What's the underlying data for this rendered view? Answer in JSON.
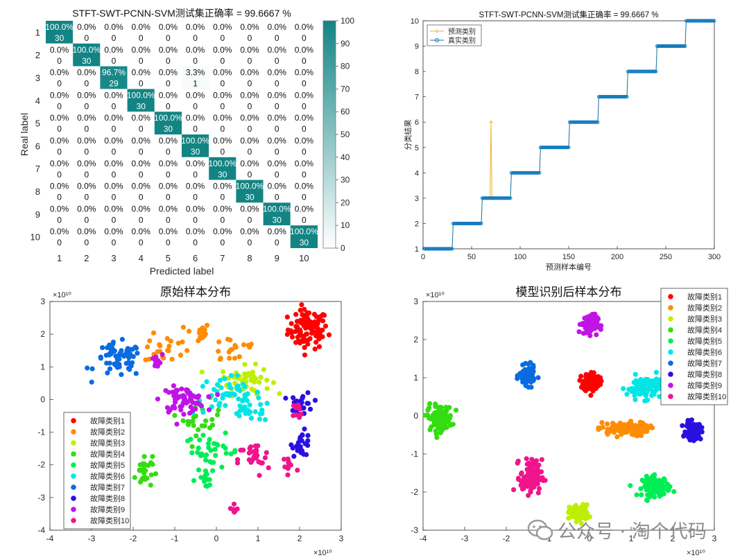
{
  "figure": {
    "watermark": "公众号 · 淘个代码"
  },
  "chart_data": [
    {
      "type": "heatmap",
      "title": "STFT-SWT-PCNN-SVM测试集正确率 = 99.6667 %",
      "xlabel": "Predicted label",
      "ylabel": "Real label",
      "x_categories": [
        "1",
        "2",
        "3",
        "4",
        "5",
        "6",
        "7",
        "8",
        "9",
        "10"
      ],
      "y_categories": [
        "1",
        "2",
        "3",
        "4",
        "5",
        "6",
        "7",
        "8",
        "9",
        "10"
      ],
      "percent_labels": [
        [
          "100.0%",
          "0.0%",
          "0.0%",
          "0.0%",
          "0.0%",
          "0.0%",
          "0.0%",
          "0.0%",
          "0.0%",
          "0.0%"
        ],
        [
          "0.0%",
          "100.0%",
          "0.0%",
          "0.0%",
          "0.0%",
          "0.0%",
          "0.0%",
          "0.0%",
          "0.0%",
          "0.0%"
        ],
        [
          "0.0%",
          "0.0%",
          "96.7%",
          "0.0%",
          "0.0%",
          "3.3%",
          "0.0%",
          "0.0%",
          "0.0%",
          "0.0%"
        ],
        [
          "0.0%",
          "0.0%",
          "0.0%",
          "100.0%",
          "0.0%",
          "0.0%",
          "0.0%",
          "0.0%",
          "0.0%",
          "0.0%"
        ],
        [
          "0.0%",
          "0.0%",
          "0.0%",
          "0.0%",
          "100.0%",
          "0.0%",
          "0.0%",
          "0.0%",
          "0.0%",
          "0.0%"
        ],
        [
          "0.0%",
          "0.0%",
          "0.0%",
          "0.0%",
          "0.0%",
          "100.0%",
          "0.0%",
          "0.0%",
          "0.0%",
          "0.0%"
        ],
        [
          "0.0%",
          "0.0%",
          "0.0%",
          "0.0%",
          "0.0%",
          "0.0%",
          "100.0%",
          "0.0%",
          "0.0%",
          "0.0%"
        ],
        [
          "0.0%",
          "0.0%",
          "0.0%",
          "0.0%",
          "0.0%",
          "0.0%",
          "0.0%",
          "100.0%",
          "0.0%",
          "0.0%"
        ],
        [
          "0.0%",
          "0.0%",
          "0.0%",
          "0.0%",
          "0.0%",
          "0.0%",
          "0.0%",
          "0.0%",
          "100.0%",
          "0.0%"
        ],
        [
          "0.0%",
          "0.0%",
          "0.0%",
          "0.0%",
          "0.0%",
          "0.0%",
          "0.0%",
          "0.0%",
          "0.0%",
          "100.0%"
        ]
      ],
      "counts": [
        [
          30,
          0,
          0,
          0,
          0,
          0,
          0,
          0,
          0,
          0
        ],
        [
          0,
          30,
          0,
          0,
          0,
          0,
          0,
          0,
          0,
          0
        ],
        [
          0,
          0,
          29,
          0,
          0,
          1,
          0,
          0,
          0,
          0
        ],
        [
          0,
          0,
          0,
          30,
          0,
          0,
          0,
          0,
          0,
          0
        ],
        [
          0,
          0,
          0,
          0,
          30,
          0,
          0,
          0,
          0,
          0
        ],
        [
          0,
          0,
          0,
          0,
          0,
          30,
          0,
          0,
          0,
          0
        ],
        [
          0,
          0,
          0,
          0,
          0,
          0,
          30,
          0,
          0,
          0
        ],
        [
          0,
          0,
          0,
          0,
          0,
          0,
          0,
          30,
          0,
          0
        ],
        [
          0,
          0,
          0,
          0,
          0,
          0,
          0,
          0,
          30,
          0
        ],
        [
          0,
          0,
          0,
          0,
          0,
          0,
          0,
          0,
          0,
          30
        ]
      ],
      "colorbar": {
        "min": 0,
        "max": 100,
        "ticks": [
          0,
          10,
          20,
          30,
          40,
          50,
          60,
          70,
          80,
          90,
          100
        ],
        "color_low": "#ffffff",
        "color_high": "#138484"
      }
    },
    {
      "type": "line",
      "title": "STFT-SWT-PCNN-SVM测试集正确率 = 99.6667 %",
      "xlabel": "预测样本编号",
      "ylabel": "分类结果",
      "xlim": [
        0,
        300
      ],
      "ylim": [
        1,
        10
      ],
      "xticks": [
        0,
        50,
        100,
        150,
        200,
        250,
        300
      ],
      "yticks": [
        1,
        2,
        3,
        4,
        5,
        6,
        7,
        8,
        9,
        10
      ],
      "grid": false,
      "legend_position": "top-left",
      "samples_per_class": 30,
      "series": [
        {
          "name": "预测类别",
          "color": "#EDB120",
          "marker": "plus",
          "misclassified": [
            {
              "x": 70,
              "y": 6
            }
          ]
        },
        {
          "name": "真实类别",
          "color": "#0072BD",
          "marker": "circle"
        }
      ]
    },
    {
      "type": "scatter",
      "title": "原始样本分布",
      "xlim": [
        -4,
        3
      ],
      "ylim": [
        -4,
        3
      ],
      "xticks": [
        -4,
        -3,
        -2,
        -1,
        0,
        1,
        2,
        3
      ],
      "yticks": [
        -4,
        -3,
        -2,
        -1,
        0,
        1,
        2,
        3
      ],
      "axis_exponent": "×10¹⁰",
      "legend_position": "bottom-left",
      "series": [
        {
          "name": "故障类别1",
          "color": "#FF0000",
          "clusters": [
            {
              "cx": 2.2,
              "cy": 2.15,
              "sx": 0.32,
              "sy": 0.4,
              "n": 95
            }
          ]
        },
        {
          "name": "故障类别2",
          "color": "#FF8C00",
          "clusters": [
            {
              "cx": -1.2,
              "cy": 1.55,
              "sx": 0.35,
              "sy": 0.3,
              "n": 22
            },
            {
              "cx": -0.45,
              "cy": 2.05,
              "sx": 0.2,
              "sy": 0.2,
              "n": 18
            },
            {
              "cx": 0.4,
              "cy": 1.55,
              "sx": 0.45,
              "sy": 0.35,
              "n": 18
            }
          ]
        },
        {
          "name": "故障类别3",
          "color": "#BFEF00",
          "clusters": [
            {
              "cx": 0.7,
              "cy": 0.6,
              "sx": 0.4,
              "sy": 0.28,
              "n": 55
            }
          ]
        },
        {
          "name": "故障类别4",
          "color": "#33DD11",
          "clusters": [
            {
              "cx": -1.75,
              "cy": -2.2,
              "sx": 0.14,
              "sy": 0.35,
              "n": 30
            },
            {
              "cx": -0.35,
              "cy": -0.55,
              "sx": 0.3,
              "sy": 0.35,
              "n": 25
            }
          ]
        },
        {
          "name": "故障类别5",
          "color": "#00EE55",
          "clusters": [
            {
              "cx": -0.1,
              "cy": -1.6,
              "sx": 0.45,
              "sy": 0.35,
              "n": 35
            },
            {
              "cx": -0.3,
              "cy": -2.45,
              "sx": 0.2,
              "sy": 0.15,
              "n": 12
            }
          ]
        },
        {
          "name": "故障类别6",
          "color": "#00E5E5",
          "clusters": [
            {
              "cx": 0.25,
              "cy": 0.15,
              "sx": 0.55,
              "sy": 0.4,
              "n": 50
            },
            {
              "cx": 0.8,
              "cy": -0.35,
              "sx": 0.35,
              "sy": 0.2,
              "n": 25
            }
          ]
        },
        {
          "name": "故障类别7",
          "color": "#0A6BE0",
          "clusters": [
            {
              "cx": -2.35,
              "cy": 1.2,
              "sx": 0.38,
              "sy": 0.35,
              "n": 60
            }
          ]
        },
        {
          "name": "故障类别8",
          "color": "#2A10E0",
          "clusters": [
            {
              "cx": 2.05,
              "cy": -0.15,
              "sx": 0.18,
              "sy": 0.25,
              "n": 28
            },
            {
              "cx": 2.05,
              "cy": -1.35,
              "sx": 0.15,
              "sy": 0.25,
              "n": 28
            }
          ]
        },
        {
          "name": "故障类别9",
          "color": "#C014E6",
          "clusters": [
            {
              "cx": -0.8,
              "cy": 0.0,
              "sx": 0.35,
              "sy": 0.25,
              "n": 70
            },
            {
              "cx": -1.45,
              "cy": 1.15,
              "sx": 0.1,
              "sy": 0.15,
              "n": 10
            }
          ]
        },
        {
          "name": "故障类别10",
          "color": "#F0148C",
          "clusters": [
            {
              "cx": 0.9,
              "cy": -1.85,
              "sx": 0.25,
              "sy": 0.35,
              "n": 28
            },
            {
              "cx": 1.75,
              "cy": -2.05,
              "sx": 0.15,
              "sy": 0.35,
              "n": 12
            },
            {
              "cx": 0.4,
              "cy": -3.35,
              "sx": 0.08,
              "sy": 0.15,
              "n": 8
            },
            {
              "cx": 2.0,
              "cy": -0.35,
              "sx": 0.12,
              "sy": 0.2,
              "n": 10
            }
          ]
        }
      ]
    },
    {
      "type": "scatter",
      "title": "模型识别后样本分布",
      "xlim": [
        -4,
        3
      ],
      "ylim": [
        -3,
        3
      ],
      "xticks": [
        -4,
        -3,
        -2,
        -1,
        0,
        1,
        2,
        3
      ],
      "yticks": [
        -3,
        -2,
        -1,
        0,
        1,
        2,
        3
      ],
      "axis_exponent": "×10¹⁰",
      "legend_position": "top-right",
      "series": [
        {
          "name": "故障类别1",
          "color": "#FF0000",
          "clusters": [
            {
              "cx": 0.05,
              "cy": 0.9,
              "sx": 0.13,
              "sy": 0.17,
              "n": 100
            }
          ]
        },
        {
          "name": "故障类别2",
          "color": "#FF8C00",
          "clusters": [
            {
              "cx": 0.8,
              "cy": -0.35,
              "sx": 0.4,
              "sy": 0.12,
              "n": 100
            }
          ]
        },
        {
          "name": "故障类别3",
          "color": "#BFEF00",
          "clusters": [
            {
              "cx": -0.25,
              "cy": -2.55,
              "sx": 0.15,
              "sy": 0.14,
              "n": 100
            }
          ]
        },
        {
          "name": "故障类别4",
          "color": "#33DD11",
          "clusters": [
            {
              "cx": -3.6,
              "cy": -0.05,
              "sx": 0.2,
              "sy": 0.22,
              "n": 100
            }
          ]
        },
        {
          "name": "故障类别5",
          "color": "#00EE55",
          "clusters": [
            {
              "cx": 1.6,
              "cy": -1.85,
              "sx": 0.22,
              "sy": 0.17,
              "n": 100
            }
          ]
        },
        {
          "name": "故障类别6",
          "color": "#00E5E5",
          "clusters": [
            {
              "cx": 1.35,
              "cy": 0.75,
              "sx": 0.3,
              "sy": 0.2,
              "n": 100
            }
          ]
        },
        {
          "name": "故障类别7",
          "color": "#0A6BE0",
          "clusters": [
            {
              "cx": -1.5,
              "cy": 1.05,
              "sx": 0.12,
              "sy": 0.16,
              "n": 100
            }
          ]
        },
        {
          "name": "故障类别8",
          "color": "#2A10E0",
          "clusters": [
            {
              "cx": 2.5,
              "cy": -0.4,
              "sx": 0.12,
              "sy": 0.15,
              "n": 100
            }
          ]
        },
        {
          "name": "故障类别9",
          "color": "#C014E6",
          "clusters": [
            {
              "cx": 0.0,
              "cy": 2.4,
              "sx": 0.13,
              "sy": 0.17,
              "n": 100
            }
          ]
        },
        {
          "name": "故障类别10",
          "color": "#F0148C",
          "clusters": [
            {
              "cx": -1.4,
              "cy": -1.6,
              "sx": 0.17,
              "sy": 0.3,
              "n": 100
            }
          ]
        }
      ]
    }
  ]
}
